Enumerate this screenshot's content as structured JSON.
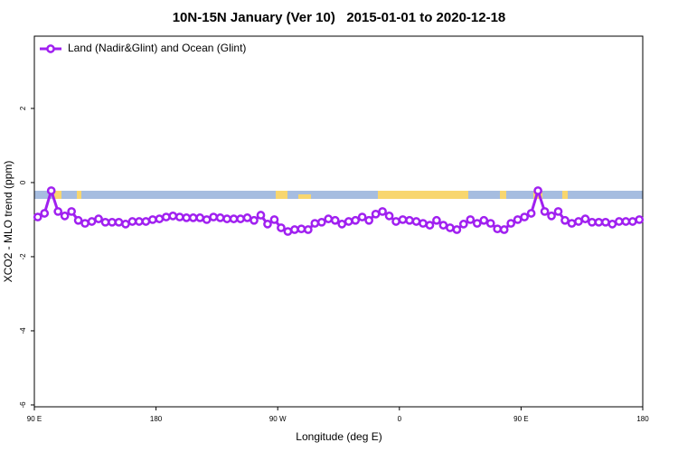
{
  "chart_data": {
    "type": "line",
    "title": "10N-15N January (Ver 10)   2015-01-01 to 2020-12-18",
    "x_label": "Longitude (deg E)",
    "y_label": "XCO2 - MLO trend (ppm)",
    "xlim": [
      90,
      540
    ],
    "ylim": [
      -6.05,
      3.95
    ],
    "xticks": [
      {
        "value": 90,
        "label": "90 E"
      },
      180,
      {
        "value": 270,
        "label": "90 W"
      },
      {
        "value": 360,
        "label": "0"
      },
      {
        "value": 450,
        "label": "90 E"
      },
      {
        "value": 540,
        "label": "180"
      }
    ],
    "yticks": [
      -6,
      -4,
      -2,
      0,
      2
    ],
    "legend": "top-left",
    "x": [
      92.5,
      97.5,
      102.5,
      107.5,
      112.5,
      117.5,
      122.5,
      127.5,
      132.5,
      137.5,
      142.5,
      147.5,
      152.5,
      157.5,
      162.5,
      167.5,
      172.5,
      177.5,
      182.5,
      187.5,
      192.5,
      197.5,
      202.5,
      207.5,
      212.5,
      217.5,
      222.5,
      227.5,
      232.5,
      237.5,
      242.5,
      247.5,
      252.5,
      257.5,
      262.5,
      267.5,
      272.5,
      277.5,
      282.5,
      287.5,
      292.5,
      297.5,
      302.5,
      307.5,
      312.5,
      317.5,
      322.5,
      327.5,
      332.5,
      337.5,
      342.5,
      347.5,
      352.5,
      357.5,
      362.5,
      367.5,
      372.5,
      377.5,
      382.5,
      387.5,
      392.5,
      397.5,
      402.5,
      407.5,
      412.5,
      417.5,
      422.5,
      427.5,
      432.5,
      437.5,
      442.5,
      447.5,
      452.5,
      457.5,
      462.5,
      467.5,
      472.5,
      477.5,
      482.5,
      487.5,
      492.5,
      497.5,
      502.5,
      507.5,
      512.5,
      517.5,
      522.5,
      527.5,
      532.5,
      537.5
    ],
    "series": [
      {
        "name": "Land (Nadir&Glint) and Ocean (Glint)",
        "color": "#a020f0",
        "values": [
          -0.93,
          -0.83,
          -0.22,
          -0.78,
          -0.9,
          -0.78,
          -1.02,
          -1.1,
          -1.05,
          -0.98,
          -1.07,
          -1.07,
          -1.07,
          -1.12,
          -1.05,
          -1.05,
          -1.05,
          -1.0,
          -0.98,
          -0.93,
          -0.9,
          -0.93,
          -0.95,
          -0.95,
          -0.95,
          -1.0,
          -0.93,
          -0.95,
          -0.98,
          -0.98,
          -0.98,
          -0.95,
          -1.02,
          -0.88,
          -1.12,
          -1.0,
          -1.22,
          -1.32,
          -1.27,
          -1.25,
          -1.27,
          -1.1,
          -1.07,
          -0.98,
          -1.02,
          -1.12,
          -1.05,
          -1.02,
          -0.93,
          -1.02,
          -0.85,
          -0.78,
          -0.9,
          -1.05,
          -1.0,
          -1.02,
          -1.05,
          -1.1,
          -1.15,
          -1.02,
          -1.15,
          -1.22,
          -1.27,
          -1.12,
          -1.0,
          -1.1,
          -1.02,
          -1.1,
          -1.25,
          -1.27,
          -1.1,
          -1.0,
          -0.93,
          -0.83,
          -0.22,
          -0.78,
          -0.9,
          -0.78,
          -1.02,
          -1.1,
          -1.05,
          -0.98,
          -1.07,
          -1.07,
          -1.07,
          -1.12,
          -1.05,
          -1.05,
          -1.05,
          -1.0
        ]
      }
    ]
  }
}
